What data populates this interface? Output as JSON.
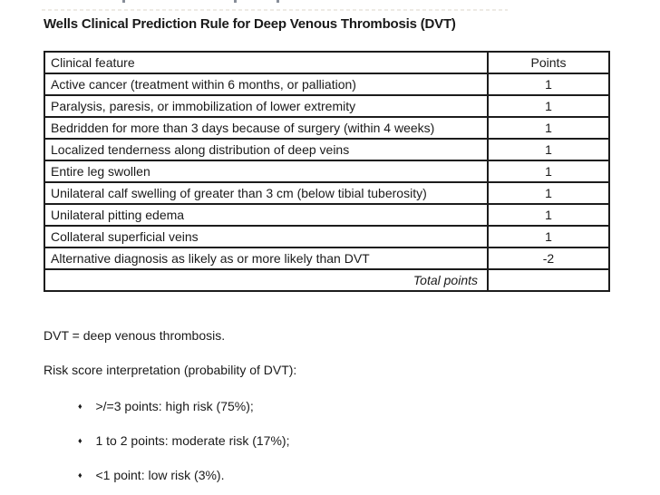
{
  "title": "Wells Clinical Prediction Rule for Deep Venous Thrombosis (DVT)",
  "colors": {
    "text": "#1a1a1a",
    "table_border": "#1c1c1c",
    "background": "#ffffff"
  },
  "icons": {
    "bullet": "♦"
  },
  "table": {
    "headers": [
      "Clinical feature",
      "Points"
    ],
    "rows": [
      {
        "feature": "Active cancer (treatment within 6 months, or palliation)",
        "points": "1"
      },
      {
        "feature": "Paralysis, paresis, or immobilization of lower extremity",
        "points": "1"
      },
      {
        "feature": "Bedridden for more than 3 days because of surgery (within 4 weeks)",
        "points": "1"
      },
      {
        "feature": "Localized tenderness along distribution of deep veins",
        "points": "1"
      },
      {
        "feature": "Entire leg swollen",
        "points": "1"
      },
      {
        "feature": "Unilateral calf swelling of greater than 3 cm (below tibial tuberosity)",
        "points": "1"
      },
      {
        "feature": "Unilateral pitting edema",
        "points": "1"
      },
      {
        "feature": "Collateral superficial veins",
        "points": "1"
      },
      {
        "feature": "Alternative diagnosis as likely as or more likely than DVT",
        "points": "-2"
      }
    ],
    "footer": {
      "label": "Total points",
      "value": ""
    }
  },
  "notes": {
    "abbreviation": "DVT = deep venous thrombosis.",
    "interpretation_heading": "Risk score interpretation (probability of DVT):",
    "bullets": [
      ">/=3 points: high risk (75%);",
      "1 to 2 points: moderate risk (17%);",
      "<1 point: low risk (3%)."
    ]
  }
}
